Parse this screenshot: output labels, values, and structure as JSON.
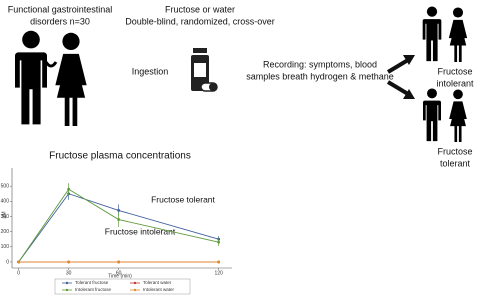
{
  "labels": {
    "population": [
      "Functional gastrointestinal",
      "disorders n=30"
    ],
    "design": [
      "Fructose or water",
      "Double-blind, randomized, cross-over"
    ],
    "ingestion": "Ingestion",
    "recording": [
      "Recording: symptoms, blood",
      "samples breath hydrogen & methane"
    ],
    "intolerant": [
      "Fructose",
      "intolerant"
    ],
    "tolerant": [
      "Fructose",
      "tolerant"
    ]
  },
  "chart_data": {
    "type": "line",
    "title": "Fructose plasma concentrations",
    "x_label": "Time (min)",
    "y_label": "µM",
    "x": [
      0,
      30,
      60,
      120
    ],
    "xlim": [
      -4,
      128
    ],
    "xticks": [
      0,
      30,
      60,
      120
    ],
    "ylim": [
      -40,
      620
    ],
    "yticks": [
      0,
      100,
      200,
      300,
      400,
      500
    ],
    "series": [
      {
        "name": "Tolerant fructose",
        "color": "#3f5f9e",
        "values": [
          0,
          450,
          340,
          150
        ],
        "errors": [
          0,
          40,
          40,
          20
        ]
      },
      {
        "name": "Tolerant water",
        "color": "#c0392b",
        "values": [
          0,
          0,
          0,
          0
        ]
      },
      {
        "name": "Intolerant fructose",
        "color": "#5e9c3c",
        "values": [
          0,
          480,
          280,
          130
        ],
        "errors": [
          0,
          40,
          50,
          25
        ]
      },
      {
        "name": "Intolerant water",
        "color": "#e08a2e",
        "values": [
          0,
          0,
          0,
          0
        ]
      }
    ],
    "annotations": [
      {
        "text": "Fructose tolerant",
        "color": "#3f5f9e"
      },
      {
        "text": "Fructose intolerant",
        "color": "#5e9c3c"
      }
    ]
  }
}
